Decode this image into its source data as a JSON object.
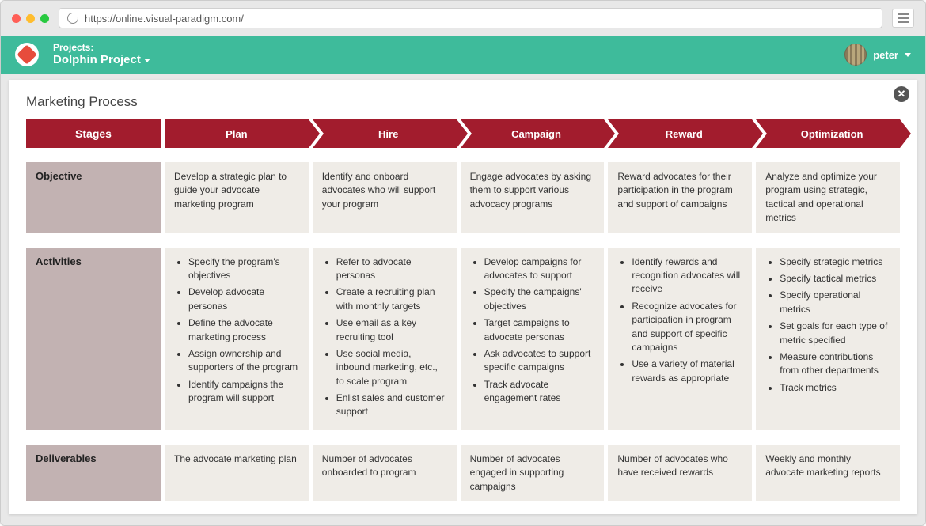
{
  "browser": {
    "url": "https://online.visual-paradigm.com/"
  },
  "header": {
    "projects_label": "Projects:",
    "project_name": "Dolphin Project",
    "user_name": "peter"
  },
  "page": {
    "title": "Marketing Process",
    "stages_label": "Stages"
  },
  "colors": {
    "header_banner": "#a21c2d",
    "row_label_bg": "#c2b2b2",
    "cell_bg": "#efece7",
    "app_header_bg": "#3ebb9b"
  },
  "stages": [
    {
      "name": "Plan"
    },
    {
      "name": "Hire"
    },
    {
      "name": "Campaign"
    },
    {
      "name": "Reward"
    },
    {
      "name": "Optimization"
    }
  ],
  "rows": {
    "objective_label": "Objective",
    "activities_label": "Activities",
    "deliverables_label": "Deliverables"
  },
  "objectives": [
    "Develop a strategic plan to guide your advocate marketing program",
    "Identify and onboard advocates who will support your program",
    "Engage advocates by asking them to support various advocacy programs",
    "Reward advocates for their participation in the program and support of campaigns",
    "Analyze and optimize your program using strategic, tactical and operational metrics"
  ],
  "activities": [
    [
      "Specify the program's objectives",
      "Develop advocate personas",
      "Define the advocate marketing process",
      "Assign ownership and supporters of the program",
      "Identify campaigns the program will support"
    ],
    [
      "Refer to advocate personas",
      "Create a recruiting plan with monthly targets",
      "Use email as a key recruiting tool",
      "Use social media, inbound marketing, etc., to scale program",
      "Enlist sales and customer support"
    ],
    [
      "Develop campaigns for advocates to support",
      "Specify the campaigns' objectives",
      "Target campaigns to advocate personas",
      "Ask advocates to support specific campaigns",
      "Track advocate engagement rates"
    ],
    [
      "Identify rewards and recognition advocates will receive",
      "Recognize advocates for participation in program and support of specific campaigns",
      "Use a variety of material rewards as appropriate"
    ],
    [
      "Specify strategic metrics",
      "Specify tactical metrics",
      "Specify operational metrics",
      "Set goals for each type of metric specified",
      "Measure contributions from other departments",
      "Track metrics"
    ]
  ],
  "deliverables": [
    "The advocate marketing plan",
    "Number of advocates onboarded to program",
    "Number of advocates engaged in supporting campaigns",
    "Number of advocates who have received rewards",
    "Weekly and monthly advocate marketing reports"
  ]
}
